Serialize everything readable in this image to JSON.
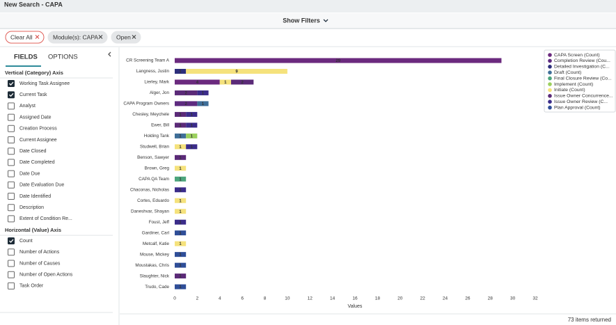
{
  "header": {
    "title": "New Search - CAPA"
  },
  "filters_toggle": "Show Filters",
  "chips": [
    "Clear All",
    "Module(s): CAPA",
    "Open"
  ],
  "tabs": [
    "FIELDS",
    "OPTIONS"
  ],
  "sections": [
    {
      "title": "Vertical (Category) Axis",
      "items": [
        {
          "label": "Working Task Assignee",
          "checked": true
        },
        {
          "label": "Current Task",
          "checked": true
        },
        {
          "label": "Analyst",
          "checked": false
        },
        {
          "label": "Assigned Date",
          "checked": false
        },
        {
          "label": "Creation Process",
          "checked": false
        },
        {
          "label": "Current Assignee",
          "checked": false
        },
        {
          "label": "Date Closed",
          "checked": false
        },
        {
          "label": "Date Completed",
          "checked": false
        },
        {
          "label": "Date Due",
          "checked": false
        },
        {
          "label": "Date Evaluation Due",
          "checked": false
        },
        {
          "label": "Date Identified",
          "checked": false
        },
        {
          "label": "Description",
          "checked": false
        },
        {
          "label": "Extent of Condition Re...",
          "checked": false
        }
      ]
    },
    {
      "title": "Horizontal (Value) Axis",
      "items": [
        {
          "label": "Count",
          "checked": true
        },
        {
          "label": "Number of Actions",
          "checked": false
        },
        {
          "label": "Number of Causes",
          "checked": false
        },
        {
          "label": "Number of Open Actions",
          "checked": false
        },
        {
          "label": "Task Order",
          "checked": false
        }
      ]
    }
  ],
  "footer": "73 items returned",
  "chart_data": {
    "type": "stacked-barh",
    "x_label": "Values",
    "categories": [
      "CR Screening Team A",
      "Langness, Justin",
      "Lierley, Mark",
      "Alger, Jon",
      "CAPA Program Owners",
      "Chesley, Meychele",
      "Ewer, Bill",
      "Holding Tank",
      "Studwell, Brian",
      "Benson, Sawyer",
      "Brown, Greg",
      "CAPA QA Team",
      "Chaconas, Nicholas",
      "Cortes, Eduardo",
      "Daneshvar, Shayan",
      "Foust, Jeff",
      "Gardiner, Carl",
      "Metcalf, Katie",
      "Mouse, Mickey",
      "Moustakas, Chris",
      "Slaughter, Nick",
      "Trudo, Cade"
    ],
    "series": [
      {
        "name": "CAPA Screen (Count)",
        "color": "#6b2a7e",
        "values": [
          29,
          null,
          4,
          null,
          null,
          null,
          null,
          null,
          null,
          null,
          null,
          null,
          null,
          null,
          null,
          null,
          null,
          null,
          null,
          null,
          null,
          null
        ]
      },
      {
        "name": "Completion Review (Cou...",
        "color": "#5e2b80",
        "values": [
          null,
          null,
          null,
          null,
          2,
          null,
          null,
          null,
          null,
          null,
          null,
          null,
          null,
          null,
          null,
          null,
          null,
          null,
          null,
          null,
          null,
          null
        ]
      },
      {
        "name": "Detailed Investigation (C...",
        "color": "#2d2f7c",
        "values": [
          null,
          1,
          null,
          null,
          null,
          null,
          null,
          null,
          null,
          null,
          null,
          null,
          null,
          null,
          null,
          null,
          null,
          null,
          null,
          null,
          null,
          null
        ]
      },
      {
        "name": "Draft (Count)",
        "color": "#3e6e98",
        "values": [
          null,
          null,
          null,
          null,
          1,
          null,
          null,
          1,
          null,
          null,
          null,
          null,
          null,
          null,
          null,
          null,
          null,
          null,
          null,
          null,
          null,
          null
        ]
      },
      {
        "name": "Final Closure Review (Co...",
        "color": "#4ca57c",
        "values": [
          null,
          null,
          null,
          null,
          null,
          null,
          null,
          null,
          null,
          null,
          null,
          1,
          null,
          null,
          null,
          null,
          null,
          null,
          null,
          null,
          null,
          null
        ]
      },
      {
        "name": "Implement (Count)",
        "color": "#9bd05e",
        "values": [
          null,
          null,
          null,
          null,
          null,
          null,
          null,
          1,
          null,
          null,
          null,
          null,
          null,
          null,
          null,
          null,
          null,
          null,
          null,
          null,
          null,
          null
        ]
      },
      {
        "name": "Initiate (Count)",
        "color": "#f5e27c",
        "values": [
          null,
          9,
          1,
          null,
          null,
          null,
          null,
          null,
          1,
          null,
          1,
          null,
          null,
          1,
          1,
          null,
          null,
          1,
          null,
          null,
          null,
          null
        ]
      },
      {
        "name": "Issue Owner Concurrence...",
        "color": "#5b2a78",
        "values": [
          null,
          null,
          2,
          2,
          null,
          1,
          1,
          null,
          null,
          1,
          null,
          null,
          null,
          null,
          null,
          null,
          null,
          null,
          null,
          null,
          1,
          null
        ]
      },
      {
        "name": "Issue Owner Review (C...",
        "color": "#3b2c8a",
        "values": [
          null,
          null,
          null,
          1,
          null,
          1,
          1,
          null,
          1,
          null,
          null,
          null,
          1,
          null,
          null,
          1,
          null,
          null,
          null,
          null,
          null,
          null
        ]
      },
      {
        "name": "Plan Approval (Count)",
        "color": "#2f4e98",
        "values": [
          null,
          null,
          null,
          null,
          null,
          null,
          null,
          null,
          null,
          null,
          null,
          null,
          null,
          null,
          null,
          null,
          1,
          null,
          1,
          1,
          null,
          1
        ]
      }
    ],
    "xlim": [
      0,
      32
    ],
    "xticks": [
      0,
      2,
      4,
      6,
      8,
      10,
      12,
      14,
      16,
      18,
      20,
      22,
      24,
      26,
      28,
      30,
      32
    ],
    "grid": false
  }
}
